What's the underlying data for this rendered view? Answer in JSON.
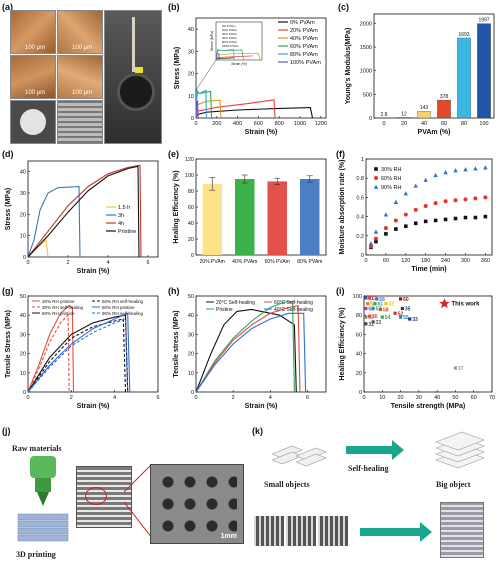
{
  "panel_labels": {
    "a": "(a)",
    "b": "(b)",
    "c": "(c)",
    "d": "(d)",
    "e": "(e)",
    "f": "(f)",
    "g": "(g)",
    "h": "(h)",
    "i": "(i)",
    "j": "(j)",
    "k": "(k)"
  },
  "panel_a": {
    "scale_labels": [
      "100 μm",
      "100 μm",
      "100 μm",
      "100 μm"
    ]
  },
  "panel_j": {
    "raw_label": "Raw materials",
    "printing_label": "3D printing",
    "scale_label": "1mm"
  },
  "panel_k": {
    "small_label": "Small objects",
    "heal_label": "Self-healing",
    "big_label": "Big object"
  },
  "chart_data": [
    {
      "id": "b",
      "type": "line",
      "title": "",
      "xlabel": "Strain (%)",
      "ylabel": "Stress (MPa)",
      "xlim": [
        0,
        1250
      ],
      "ylim": [
        0,
        45
      ],
      "xticks": [
        0,
        200,
        400,
        600,
        800,
        1000,
        1200
      ],
      "yticks": [
        0,
        10,
        20,
        30,
        40
      ],
      "legend_position": "top-right",
      "series": [
        {
          "name": "0% PVAm",
          "color": "#111111",
          "points": [
            [
              0,
              0
            ],
            [
              10,
              1.5
            ],
            [
              100,
              2.6
            ],
            [
              400,
              3.6
            ],
            [
              800,
              4.3
            ],
            [
              1100,
              4.7
            ],
            [
              1120,
              0
            ]
          ]
        },
        {
          "name": "20% PVAm",
          "color": "#e8413d",
          "points": [
            [
              0,
              0
            ],
            [
              10,
              3
            ],
            [
              200,
              4.8
            ],
            [
              500,
              6.5
            ],
            [
              750,
              8.2
            ],
            [
              760,
              0
            ]
          ]
        },
        {
          "name": "40% PVAm",
          "color": "#d4a017",
          "points": [
            [
              0,
              0
            ],
            [
              15,
              6
            ],
            [
              100,
              7.5
            ],
            [
              230,
              8
            ],
            [
              240,
              0
            ]
          ]
        },
        {
          "name": "60% PVAm",
          "color": "#2fa84f",
          "points": [
            [
              0,
              0
            ],
            [
              10,
              11.5
            ],
            [
              30,
              11
            ],
            [
              140,
              12
            ],
            [
              150,
              0
            ]
          ]
        },
        {
          "name": "80% PVAm",
          "color": "#3aa3c7",
          "points": [
            [
              0,
              0
            ],
            [
              8,
              12.5
            ],
            [
              30,
              11
            ],
            [
              95,
              12.5
            ],
            [
              100,
              0
            ]
          ]
        },
        {
          "name": "100% PVAm",
          "color": "#6a4fc4",
          "points": [
            [
              0,
              0
            ],
            [
              5,
              7
            ],
            [
              15,
              7.5
            ],
            [
              20,
              0
            ]
          ]
        }
      ],
      "inset": {
        "xlabel": "Strain (%)",
        "ylabel": "Stress (MPa)",
        "legend": [
          "0% PVAm",
          "20% PVAm",
          "40% PVAm",
          "60% PVAm",
          "80% PVAm",
          "100% PVAm"
        ]
      }
    },
    {
      "id": "c",
      "type": "bar",
      "title": "",
      "xlabel": "PVAm (%)",
      "ylabel": "Young's Modulus(MPa)",
      "categories": [
        "0",
        "20",
        "40",
        "60",
        "80",
        "100"
      ],
      "values": [
        2.8,
        12,
        143,
        378,
        1693,
        1997
      ],
      "value_labels": [
        "2.8",
        "12",
        "143",
        "378",
        "1693",
        "1997"
      ],
      "ylim": [
        0,
        2200
      ],
      "yticks": [
        0,
        500,
        1000,
        1500,
        2000
      ],
      "colors": [
        "#555555",
        "#e07070",
        "#f5d16a",
        "#e24a2b",
        "#3bb7e6",
        "#1f56a8"
      ]
    },
    {
      "id": "d",
      "type": "line",
      "title": "",
      "xlabel": "Strain (%)",
      "ylabel": "Stress (MPa)",
      "xlim": [
        0,
        6.5
      ],
      "ylim": [
        0,
        45
      ],
      "xticks": [
        0,
        2,
        4,
        6
      ],
      "yticks": [
        0,
        10,
        20,
        30,
        40
      ],
      "legend_position": "center-right",
      "series": [
        {
          "name": "1.5 h",
          "color": "#f2c14e",
          "points": [
            [
              0,
              0
            ],
            [
              0.3,
              3
            ],
            [
              0.6,
              5.5
            ],
            [
              0.9,
              8
            ],
            [
              1.0,
              0
            ]
          ]
        },
        {
          "name": "3h",
          "color": "#3c78b4",
          "points": [
            [
              0,
              0
            ],
            [
              0.3,
              8
            ],
            [
              0.6,
              22
            ],
            [
              1.0,
              30
            ],
            [
              1.5,
              32.5
            ],
            [
              2.55,
              33
            ],
            [
              2.6,
              0
            ]
          ]
        },
        {
          "name": "4h",
          "color": "#c0392b",
          "points": [
            [
              0,
              0
            ],
            [
              1,
              12
            ],
            [
              2,
              24
            ],
            [
              3,
              33
            ],
            [
              4,
              39
            ],
            [
              5,
              42
            ],
            [
              5.6,
              43
            ],
            [
              5.65,
              0
            ]
          ]
        },
        {
          "name": "Pristine",
          "color": "#111111",
          "points": [
            [
              0,
              0
            ],
            [
              1,
              10
            ],
            [
              2,
              21
            ],
            [
              3,
              31
            ],
            [
              4,
              38
            ],
            [
              5,
              41.5
            ],
            [
              5.5,
              42.5
            ],
            [
              5.55,
              0
            ]
          ]
        }
      ]
    },
    {
      "id": "e",
      "type": "bar",
      "title": "",
      "xlabel": "",
      "ylabel": "Healing Efficiency (%)",
      "categories": [
        "20% PVAm",
        "40% PVAm",
        "60% PVAm",
        "80% PVAm"
      ],
      "values": [
        89,
        95,
        92,
        95
      ],
      "errors": [
        8,
        5,
        4,
        4
      ],
      "ylim": [
        0,
        120
      ],
      "yticks": [
        0,
        20,
        40,
        60,
        80,
        100,
        120
      ],
      "colors": [
        "#fde28a",
        "#3cb34a",
        "#e2524a",
        "#4a7fc1"
      ]
    },
    {
      "id": "f",
      "type": "scatter",
      "title": "",
      "xlabel": "Time (min)",
      "ylabel": "Moisture absorption rate (%)",
      "xlim": [
        0,
        380
      ],
      "ylim": [
        0,
        1.0
      ],
      "xticks": [
        0,
        60,
        120,
        180,
        240,
        300,
        360
      ],
      "yticks": [
        0.0,
        0.2,
        0.4,
        0.6,
        0.8,
        1.0
      ],
      "legend_position": "top-left",
      "x": [
        15,
        30,
        60,
        90,
        120,
        150,
        180,
        210,
        240,
        270,
        300,
        330,
        360
      ],
      "series": [
        {
          "name": "30% RH",
          "color": "#111111",
          "marker": "square",
          "values": [
            0.08,
            0.14,
            0.22,
            0.27,
            0.3,
            0.33,
            0.35,
            0.36,
            0.37,
            0.38,
            0.39,
            0.39,
            0.4
          ]
        },
        {
          "name": "60% RH",
          "color": "#e3342f",
          "marker": "circle",
          "values": [
            0.09,
            0.17,
            0.28,
            0.36,
            0.42,
            0.47,
            0.51,
            0.54,
            0.56,
            0.57,
            0.58,
            0.59,
            0.6
          ]
        },
        {
          "name": "90% RH",
          "color": "#2e6fd6",
          "marker": "triangle",
          "values": [
            0.12,
            0.24,
            0.42,
            0.55,
            0.64,
            0.72,
            0.78,
            0.83,
            0.86,
            0.88,
            0.89,
            0.9,
            0.91
          ]
        }
      ]
    },
    {
      "id": "g",
      "type": "line",
      "title": "",
      "xlabel": "Strain (%)",
      "ylabel": "Tensile Stress (MPa)",
      "xlim": [
        0,
        6
      ],
      "ylim": [
        0,
        50
      ],
      "xticks": [
        0,
        2,
        4,
        6
      ],
      "yticks": [
        0,
        10,
        20,
        30,
        40,
        50
      ],
      "legend_position": "top",
      "series": [
        {
          "name": "30% RH pristine",
          "color": "#e74c3c",
          "dash": "",
          "points": [
            [
              0,
              0
            ],
            [
              0.5,
              14
            ],
            [
              1,
              30
            ],
            [
              1.5,
              41
            ],
            [
              1.9,
              45
            ],
            [
              2.05,
              44
            ],
            [
              2.1,
              0
            ]
          ]
        },
        {
          "name": "30% RH self-healing",
          "color": "#e74c3c",
          "dash": "3,2",
          "points": [
            [
              0,
              0
            ],
            [
              0.5,
              12
            ],
            [
              1,
              26
            ],
            [
              1.5,
              36
            ],
            [
              1.85,
              40
            ],
            [
              1.9,
              0
            ]
          ]
        },
        {
          "name": "60% RH pristine",
          "color": "#111111",
          "dash": "",
          "points": [
            [
              0,
              0
            ],
            [
              1,
              18
            ],
            [
              2,
              30
            ],
            [
              3,
              36
            ],
            [
              4,
              39
            ],
            [
              4.5,
              40
            ],
            [
              4.6,
              0
            ]
          ]
        },
        {
          "name": "60% RH self-healing",
          "color": "#111111",
          "dash": "3,2",
          "points": [
            [
              0,
              0
            ],
            [
              1,
              16
            ],
            [
              2,
              28
            ],
            [
              3,
              34
            ],
            [
              4,
              37
            ],
            [
              4.4,
              38
            ],
            [
              4.5,
              0
            ]
          ]
        },
        {
          "name": "90% RH pristine",
          "color": "#2e6fd6",
          "dash": "",
          "points": [
            [
              0,
              0
            ],
            [
              1,
              14
            ],
            [
              2,
              25
            ],
            [
              3,
              33
            ],
            [
              4,
              38
            ],
            [
              4.6,
              41
            ],
            [
              4.7,
              0
            ]
          ]
        },
        {
          "name": "90% RH self-healing",
          "color": "#2e6fd6",
          "dash": "3,2",
          "points": [
            [
              0,
              0
            ],
            [
              1,
              13
            ],
            [
              2,
              24
            ],
            [
              3,
              31
            ],
            [
              4,
              36
            ],
            [
              4.5,
              38
            ],
            [
              4.6,
              0
            ]
          ]
        }
      ]
    },
    {
      "id": "h",
      "type": "line",
      "title": "",
      "xlabel": "Strain (%)",
      "ylabel": "Tensile stress (MPa)",
      "xlim": [
        0,
        7
      ],
      "ylim": [
        0,
        50
      ],
      "xticks": [
        0,
        2,
        4,
        6
      ],
      "yticks": [
        0,
        10,
        20,
        30,
        40,
        50
      ],
      "legend_position": "top",
      "series": [
        {
          "name": "20°C Self-healing",
          "color": "#111111",
          "points": [
            [
              0,
              0
            ],
            [
              0.8,
              20
            ],
            [
              1.5,
              35
            ],
            [
              2.2,
              42
            ],
            [
              3,
              43
            ],
            [
              4.5,
              40
            ],
            [
              5.3,
              35
            ],
            [
              5.4,
              0
            ]
          ]
        },
        {
          "name": "Pristine",
          "color": "#2fa84f",
          "points": [
            [
              0,
              0
            ],
            [
              1,
              16
            ],
            [
              2,
              28
            ],
            [
              3,
              37
            ],
            [
              4,
              44
            ],
            [
              4.8,
              47
            ],
            [
              5.2,
              47
            ],
            [
              5.3,
              0
            ]
          ]
        },
        {
          "name": "60°C Self-healing",
          "color": "#e74c3c",
          "points": [
            [
              0,
              0
            ],
            [
              1,
              15
            ],
            [
              2,
              27
            ],
            [
              3,
              35
            ],
            [
              4,
              41
            ],
            [
              5,
              44
            ],
            [
              5.5,
              45
            ],
            [
              5.6,
              0
            ]
          ]
        },
        {
          "name": "40°C Self-healing",
          "color": "#2e6fd6",
          "points": [
            [
              0,
              0
            ],
            [
              1,
              14
            ],
            [
              2,
              25
            ],
            [
              3,
              33
            ],
            [
              4,
              38
            ],
            [
              5,
              41
            ],
            [
              5.8,
              41
            ],
            [
              5.9,
              0
            ]
          ]
        }
      ]
    },
    {
      "id": "i",
      "type": "scatter",
      "title": "",
      "xlabel": "Tensile strength (MPa)",
      "ylabel": "Healing Efficiency (%)",
      "xlim": [
        0,
        70
      ],
      "ylim": [
        0,
        100
      ],
      "xticks": [
        0,
        10,
        20,
        30,
        40,
        50,
        60,
        70
      ],
      "yticks": [
        0,
        20,
        40,
        60,
        80,
        100
      ],
      "legend_position": "top-right",
      "highlight": {
        "label": "This work",
        "x": 44,
        "y": 92
      },
      "points": [
        {
          "label": "51",
          "x": 1,
          "y": 98,
          "color": "#3b5ba9"
        },
        {
          "label": "62",
          "x": 3,
          "y": 98,
          "color": "#e74c3c"
        },
        {
          "label": "56",
          "x": 7,
          "y": 97,
          "color": "#2e6fd6"
        },
        {
          "label": "60",
          "x": 20,
          "y": 97,
          "color": "#8b1a1a"
        },
        {
          "label": "53",
          "x": 2,
          "y": 92,
          "color": "#e67e22"
        },
        {
          "label": "61",
          "x": 6,
          "y": 92,
          "color": "#2fa84f"
        },
        {
          "label": "32",
          "x": 12,
          "y": 92,
          "color": "#f1c40f"
        },
        {
          "label": "63",
          "x": 1,
          "y": 87,
          "color": "#8e44ad"
        },
        {
          "label": "57",
          "x": 5,
          "y": 87,
          "color": "#16a085"
        },
        {
          "label": "58",
          "x": 9,
          "y": 86,
          "color": "#d35400"
        },
        {
          "label": "35",
          "x": 21,
          "y": 87,
          "color": "#2c3e50"
        },
        {
          "label": "52",
          "x": 17,
          "y": 82,
          "color": "#c0392b"
        },
        {
          "label": "59",
          "x": 1,
          "y": 78,
          "color": "#7f8c8d"
        },
        {
          "label": "36",
          "x": 3,
          "y": 79,
          "color": "#e74c3c"
        },
        {
          "label": "54",
          "x": 10,
          "y": 78,
          "color": "#27ae60"
        },
        {
          "label": "55",
          "x": 20,
          "y": 78,
          "color": "#2980b9"
        },
        {
          "label": "33",
          "x": 25,
          "y": 76,
          "color": "#1f3a93"
        },
        {
          "label": "31",
          "x": 1,
          "y": 71,
          "color": "#34495e"
        },
        {
          "label": "33",
          "x": 5,
          "y": 73,
          "color": "#555555"
        },
        {
          "label": "37",
          "x": 50,
          "y": 25,
          "color": "#999999"
        }
      ]
    }
  ]
}
